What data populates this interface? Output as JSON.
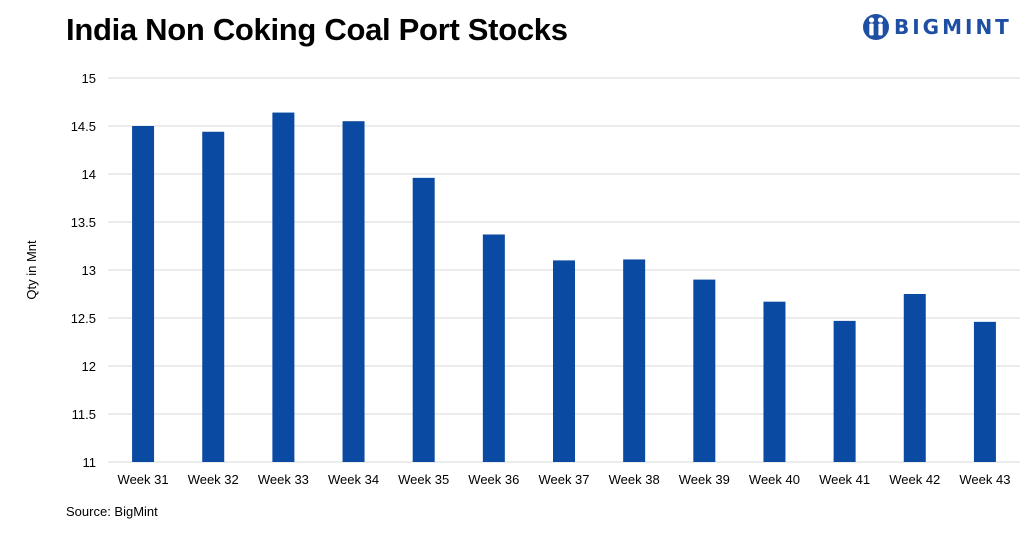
{
  "title": "India Non Coking Coal Port Stocks",
  "source": "Source: BigMint",
  "logo": {
    "text": "BIGMINT",
    "icon": "bigmint-logo-icon",
    "color": "#1f4fa3"
  },
  "chart_data": {
    "type": "bar",
    "title": "India Non Coking Coal Port Stocks",
    "xlabel": "",
    "ylabel": "Qty in Mnt",
    "ylim": [
      11,
      15
    ],
    "yticks": [
      "11",
      "11.5",
      "12",
      "12.5",
      "13",
      "13.5",
      "14",
      "14.5",
      "15"
    ],
    "grid": true,
    "bar_color": "#0b4aa2",
    "categories": [
      "Week 31",
      "Week 32",
      "Week 33",
      "Week 34",
      "Week 35",
      "Week 36",
      "Week 37",
      "Week 38",
      "Week 39",
      "Week 40",
      "Week 41",
      "Week 42",
      "Week 43"
    ],
    "values": [
      14.5,
      14.44,
      14.64,
      14.55,
      13.96,
      13.37,
      13.1,
      13.11,
      12.9,
      12.67,
      12.47,
      12.75,
      12.46
    ]
  }
}
